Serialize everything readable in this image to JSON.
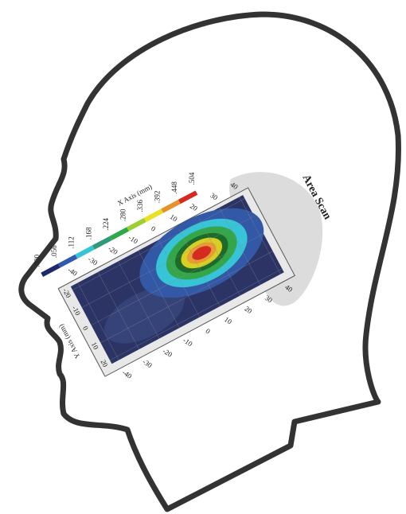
{
  "title": "Area Scan",
  "colorbar": {
    "labels": [
      ".000",
      ".056",
      ".112",
      ".168",
      ".224",
      ".280",
      ".336",
      ".392",
      ".448",
      ".504"
    ]
  },
  "x_axis": {
    "label": "X Axis (mm)",
    "ticks": [
      "-40",
      "-30",
      "-20",
      "-10",
      "0",
      "10",
      "20",
      "30",
      "40"
    ]
  },
  "y_axis": {
    "label": "Y Axis (mm)",
    "ticks": [
      "-20",
      "-10",
      "0",
      "10",
      "20"
    ]
  }
}
